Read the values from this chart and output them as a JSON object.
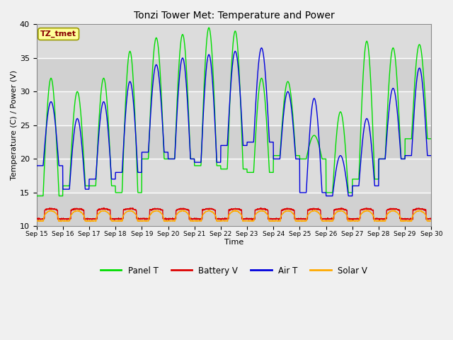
{
  "title": "Tonzi Tower Met: Temperature and Power",
  "xlabel": "Time",
  "ylabel": "Temperature (C) / Power (V)",
  "ylim": [
    10,
    40
  ],
  "xlim": [
    0,
    15
  ],
  "bg_color": "#dcdcdc",
  "fig_color": "#f0f0f0",
  "panel_color": "#00dd00",
  "battery_color": "#dd0000",
  "air_color": "#0000dd",
  "solar_color": "#ffaa00",
  "tz_label": "TZ_tmet",
  "tz_bg": "#ffff99",
  "tz_fg": "#880000",
  "x_tick_labels": [
    "Sep 15",
    "Sep 16",
    "Sep 17",
    "Sep 18",
    "Sep 19",
    "Sep 20",
    "Sep 21",
    "Sep 22",
    "Sep 23",
    "Sep 24",
    "Sep 25",
    "Sep 26",
    "Sep 27",
    "Sep 28",
    "Sep 29",
    "Sep 30"
  ],
  "legend_labels": [
    "Panel T",
    "Battery V",
    "Air T",
    "Solar V"
  ],
  "panel_peaks": [
    32,
    30,
    32,
    36,
    38,
    38.5,
    39.5,
    39,
    32,
    31.5,
    23.5,
    27,
    37.5,
    36.5,
    37
  ],
  "panel_troughs": [
    14.5,
    16,
    16,
    15,
    20,
    20,
    19,
    18.5,
    18,
    20.5,
    20,
    15,
    17,
    20,
    23
  ],
  "air_peaks": [
    28.5,
    26,
    28.5,
    31.5,
    34,
    35,
    35.5,
    36,
    36.5,
    30,
    29,
    20.5,
    26,
    30.5,
    33.5
  ],
  "air_troughs": [
    19,
    15.5,
    17,
    18,
    21,
    20,
    19.5,
    22,
    22.5,
    20,
    15,
    14.5,
    16,
    20,
    20.5
  ]
}
